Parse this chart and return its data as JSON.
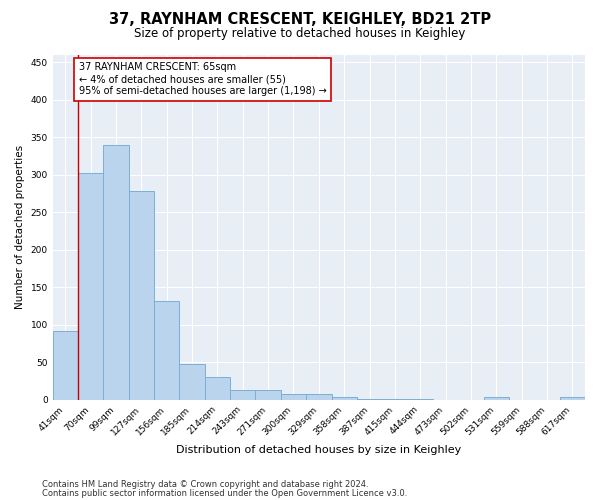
{
  "title": "37, RAYNHAM CRESCENT, KEIGHLEY, BD21 2TP",
  "subtitle": "Size of property relative to detached houses in Keighley",
  "xlabel": "Distribution of detached houses by size in Keighley",
  "ylabel": "Number of detached properties",
  "categories": [
    "41sqm",
    "70sqm",
    "99sqm",
    "127sqm",
    "156sqm",
    "185sqm",
    "214sqm",
    "243sqm",
    "271sqm",
    "300sqm",
    "329sqm",
    "358sqm",
    "387sqm",
    "415sqm",
    "444sqm",
    "473sqm",
    "502sqm",
    "531sqm",
    "559sqm",
    "588sqm",
    "617sqm"
  ],
  "values": [
    92,
    303,
    340,
    278,
    132,
    47,
    30,
    13,
    13,
    8,
    8,
    4,
    1,
    1,
    1,
    0,
    0,
    4,
    0,
    0,
    4
  ],
  "bar_color": "#bad4ed",
  "bar_edge_color": "#7aafd4",
  "annotation_title": "37 RAYNHAM CRESCENT: 65sqm",
  "annotation_line1": "← 4% of detached houses are smaller (55)",
  "annotation_line2": "95% of semi-detached houses are larger (1,198) →",
  "annotation_box_facecolor": "#ffffff",
  "annotation_box_edgecolor": "#cc0000",
  "vertical_line_color": "#cc0000",
  "bg_color": "#e8eef6",
  "grid_color": "#ffffff",
  "footer1": "Contains HM Land Registry data © Crown copyright and database right 2024.",
  "footer2": "Contains public sector information licensed under the Open Government Licence v3.0.",
  "ylim": [
    0,
    460
  ],
  "yticks": [
    0,
    50,
    100,
    150,
    200,
    250,
    300,
    350,
    400,
    450
  ],
  "title_fontsize": 10.5,
  "subtitle_fontsize": 8.5,
  "xlabel_fontsize": 8,
  "ylabel_fontsize": 7.5,
  "tick_fontsize": 6.5,
  "annot_fontsize": 7,
  "footer_fontsize": 6
}
